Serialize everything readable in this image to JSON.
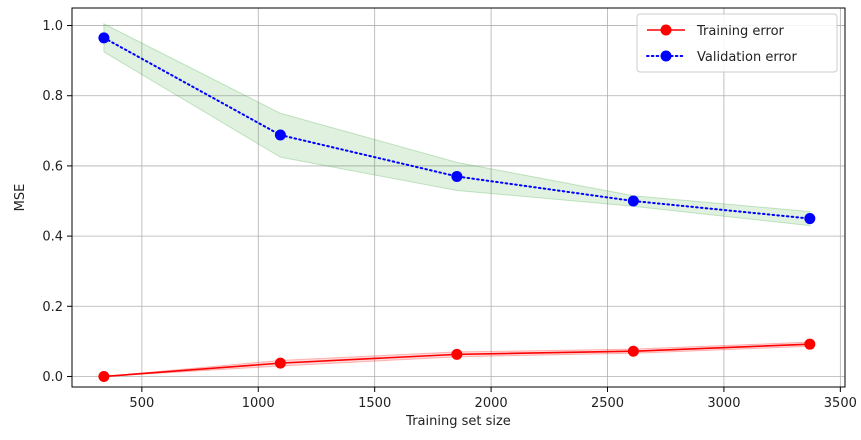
{
  "chart_data": {
    "type": "line",
    "title": "",
    "xlabel": "Training set size",
    "ylabel": "MSE",
    "xlim": [
      200,
      3520
    ],
    "ylim": [
      -0.03,
      1.05
    ],
    "xticks": [
      500,
      1000,
      1500,
      2000,
      2500,
      3000,
      3500
    ],
    "yticks": [
      0.0,
      0.2,
      0.4,
      0.6,
      0.8,
      1.0
    ],
    "xtick_labels": [
      "500",
      "1000",
      "1500",
      "2000",
      "2500",
      "3000",
      "3500"
    ],
    "ytick_labels": [
      "0.0",
      "0.2",
      "0.4",
      "0.6",
      "0.8",
      "1.0"
    ],
    "grid": true,
    "legend_position": "top-right",
    "x": [
      337,
      1095,
      1853,
      2611,
      3369
    ],
    "series": [
      {
        "name": "Training error",
        "values": [
          0.0,
          0.038,
          0.063,
          0.072,
          0.092
        ],
        "color": "#ff0000",
        "line_style": "solid",
        "band_lower": [
          0.0,
          0.03,
          0.056,
          0.066,
          0.086
        ],
        "band_upper": [
          0.0,
          0.046,
          0.07,
          0.078,
          0.098
        ],
        "band_color": "#ff0000"
      },
      {
        "name": "Validation error",
        "values": [
          0.965,
          0.688,
          0.57,
          0.5,
          0.45
        ],
        "color": "#0000ff",
        "line_style": "dotted",
        "band_lower": [
          0.925,
          0.625,
          0.53,
          0.485,
          0.43
        ],
        "band_upper": [
          1.005,
          0.75,
          0.61,
          0.515,
          0.47
        ],
        "band_color": "#2ca02c"
      }
    ]
  }
}
